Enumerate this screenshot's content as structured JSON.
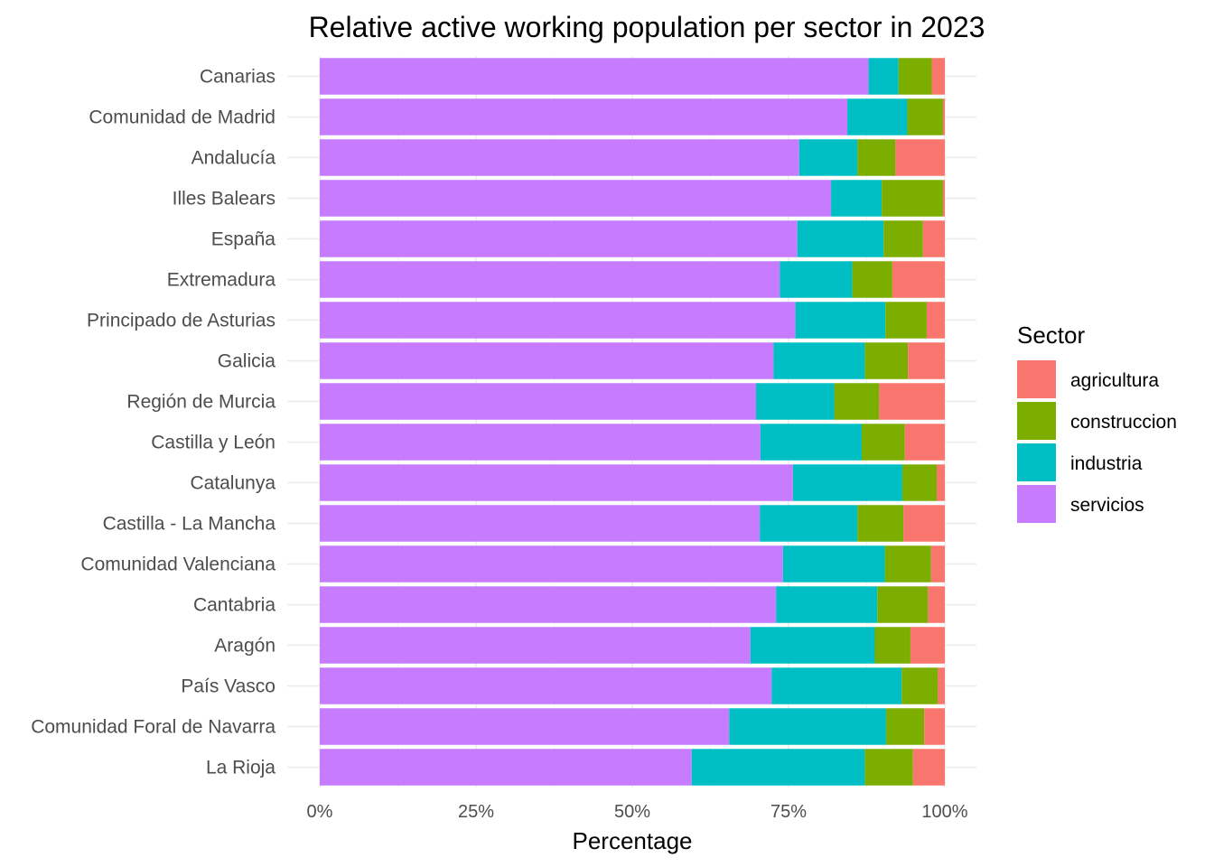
{
  "chart_data": {
    "type": "bar",
    "orientation": "horizontal",
    "stacked": true,
    "title": "Relative active working population per sector in 2023",
    "xlabel": "Percentage",
    "ylabel": "",
    "xlim": [
      0,
      100
    ],
    "x_ticks": [
      0,
      25,
      50,
      75,
      100
    ],
    "x_tick_labels": [
      "0%",
      "25%",
      "50%",
      "75%",
      "100%"
    ],
    "grid": true,
    "legend": {
      "title": "Sector",
      "placement": "right"
    },
    "categories": [
      "Canarias",
      "Comunidad de Madrid",
      "Andalucía",
      "Illes Balears",
      "España",
      "Extremadura",
      "Principado de Asturias",
      "Galicia",
      "Región de Murcia",
      "Castilla y León",
      "Catalunya",
      "Castilla - La Mancha",
      "Comunidad Valenciana",
      "Cantabria",
      "Aragón",
      "País Vasco",
      "Comunidad Foral de Navarra",
      "La Rioja"
    ],
    "series": [
      {
        "name": "servicios",
        "color": "#C77CFF",
        "values": [
          87.8,
          84.4,
          76.7,
          81.8,
          76.4,
          73.6,
          76.1,
          72.6,
          69.8,
          70.5,
          75.7,
          70.4,
          74.1,
          73.0,
          68.9,
          72.3,
          65.5,
          59.5
        ]
      },
      {
        "name": "industria",
        "color": "#00BFC4",
        "values": [
          4.8,
          9.6,
          9.3,
          8.1,
          13.8,
          11.6,
          14.4,
          14.6,
          12.5,
          16.2,
          17.5,
          15.6,
          16.3,
          16.2,
          19.9,
          20.8,
          25.1,
          27.7
        ]
      },
      {
        "name": "construccion",
        "color": "#7CAE00",
        "values": [
          5.3,
          5.7,
          6.1,
          9.8,
          6.3,
          6.4,
          6.6,
          6.9,
          7.2,
          6.9,
          5.5,
          7.4,
          7.4,
          8.1,
          5.7,
          5.8,
          6.1,
          7.7
        ]
      },
      {
        "name": "agricultura",
        "color": "#F8766D",
        "values": [
          2.1,
          0.3,
          7.9,
          0.3,
          3.5,
          8.4,
          2.9,
          5.9,
          10.5,
          6.4,
          1.3,
          6.6,
          2.2,
          2.7,
          5.5,
          1.1,
          3.3,
          5.1
        ]
      }
    ]
  }
}
